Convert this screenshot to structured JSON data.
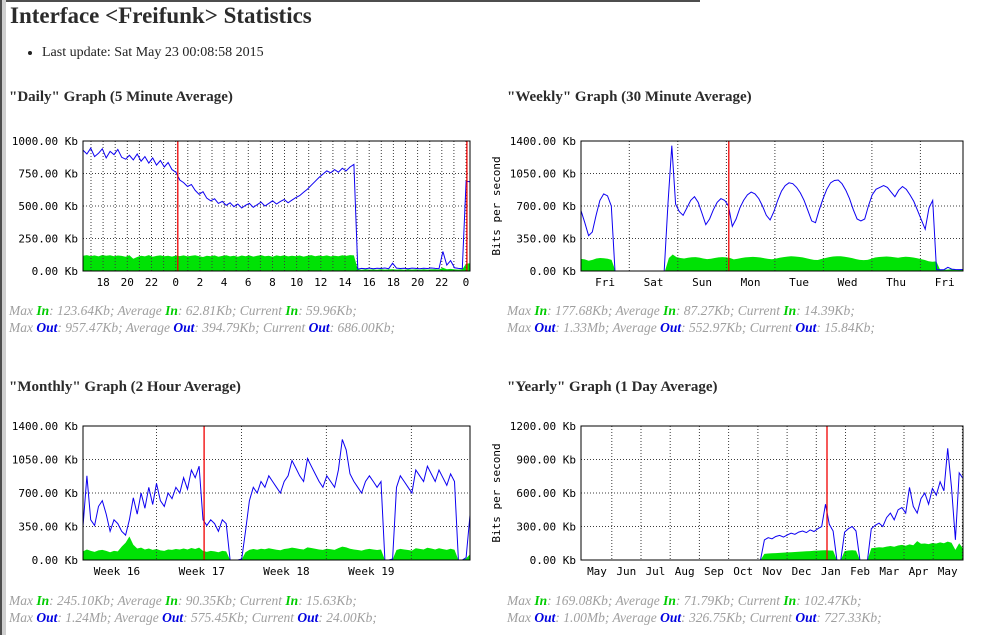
{
  "page": {
    "title": "Interface <Freifunk> Statistics",
    "last_update": "Last update: Sat May 23 00:08:58 2015"
  },
  "labels": {
    "max": "Max",
    "average": "Average",
    "current": "Current",
    "in": "In",
    "out": "Out"
  },
  "colors": {
    "in_fill": "#00e205",
    "in_text": "#00cc00",
    "out": "#0d00f2",
    "out_text": "#0000e0",
    "red_line": "#f00000",
    "grid": "#3c3c3c",
    "stats_text": "#9e9e9e",
    "title_text": "#2b2b2b"
  },
  "chart_data": [
    {
      "id": "daily",
      "title": "\"Daily\" Graph (5 Minute Average)",
      "type": "area+line",
      "ylabel": "Bits per second",
      "ylabel_visible": false,
      "ylim": [
        0,
        1000
      ],
      "y_tick_labels": [
        "1000.00 Kb",
        "750.00 Kb",
        "500.00 Kb",
        "250.00 Kb",
        "0.00 Kb"
      ],
      "x_tick_labels": [
        "18",
        "20",
        "22",
        "0",
        "2",
        "4",
        "6",
        "8",
        "10",
        "12",
        "14",
        "16",
        "18",
        "20",
        "22",
        "0"
      ],
      "x_tick_first": 0.052,
      "x_tick_step": 0.0625,
      "x_anchor": "middle",
      "grid_x_start": 0.0208,
      "grid_x_step": 0.03125,
      "red_lines": [
        0.245,
        0.992
      ],
      "series": [
        {
          "name": "In",
          "role": "in",
          "values": [
            118,
            122,
            115,
            120,
            112,
            123,
            117,
            121,
            114,
            119,
            116,
            110,
            121,
            95,
            108,
            118,
            112,
            122,
            109,
            116,
            120,
            113,
            118,
            111,
            119,
            115,
            120,
            112,
            117,
            121,
            114,
            108,
            118,
            113,
            120,
            110,
            116,
            121,
            112,
            117,
            109,
            119,
            114,
            120,
            111,
            117,
            122,
            113,
            118,
            110,
            120,
            115,
            121,
            112,
            118,
            114,
            119,
            111,
            117,
            122,
            113,
            119,
            115,
            120,
            112,
            118,
            114,
            121,
            116,
            122,
            120,
            12,
            10,
            13,
            11,
            12,
            10,
            13,
            11,
            12,
            14,
            11,
            12,
            10,
            13,
            11,
            12,
            10,
            13,
            11,
            12,
            14,
            11,
            25,
            13,
            16,
            12,
            11,
            13,
            55,
            60
          ]
        },
        {
          "name": "Out",
          "role": "out",
          "values": [
            930,
            900,
            945,
            880,
            905,
            940,
            870,
            920,
            895,
            935,
            875,
            860,
            890,
            855,
            900,
            845,
            880,
            830,
            870,
            815,
            850,
            800,
            835,
            780,
            760,
            700,
            680,
            650,
            665,
            620,
            590,
            610,
            560,
            540,
            555,
            520,
            535,
            505,
            525,
            495,
            515,
            485,
            505,
            520,
            490,
            510,
            530,
            500,
            520,
            540,
            515,
            535,
            550,
            525,
            545,
            565,
            580,
            605,
            630,
            660,
            690,
            720,
            745,
            770,
            755,
            780,
            760,
            790,
            770,
            800,
            820,
            15,
            20,
            18,
            22,
            17,
            21,
            19,
            23,
            18,
            60,
            22,
            19,
            21,
            18,
            22,
            20,
            17,
            21,
            19,
            23,
            20,
            18,
            150,
            45,
            80,
            25,
            20,
            18,
            690,
            686
          ]
        }
      ],
      "stats": {
        "in": {
          "max": "123.64Kb",
          "average": "62.81Kb",
          "current": "59.96Kb"
        },
        "out": {
          "max": "957.47Kb",
          "average": "394.79Kb",
          "current": "686.00Kb"
        }
      }
    },
    {
      "id": "weekly",
      "title": "\"Weekly\" Graph (30 Minute Average)",
      "type": "area+line",
      "ylabel": "Bits per second",
      "ylabel_visible": true,
      "ylim": [
        0,
        1400
      ],
      "y_tick_labels": [
        "1400.00 Kb",
        "1050.00 Kb",
        "700.00 Kb",
        "350.00 Kb",
        "0.00 Kb"
      ],
      "x_tick_labels": [
        "Fri",
        "Sat",
        "Sun",
        "Mon",
        "Tue",
        "Wed",
        "Thu",
        "Fri"
      ],
      "x_tick_first": 0.063,
      "x_tick_step": 0.127,
      "x_anchor": "middle",
      "grid_x_start": 0.1265,
      "grid_x_step": 0.127,
      "red_lines": [
        0.387
      ],
      "series": [
        {
          "name": "In",
          "role": "in",
          "values": [
            130,
            125,
            110,
            120,
            135,
            140,
            138,
            132,
            120,
            0,
            0,
            0,
            0,
            0,
            0,
            0,
            0,
            0,
            0,
            0,
            0,
            0,
            0,
            140,
            178,
            150,
            140,
            135,
            142,
            148,
            150,
            144,
            135,
            128,
            132,
            140,
            146,
            150,
            147,
            140,
            125,
            132,
            140,
            146,
            150,
            152,
            150,
            145,
            138,
            130,
            126,
            134,
            142,
            150,
            155,
            158,
            156,
            152,
            146,
            138,
            128,
            120,
            118,
            130,
            140,
            150,
            156,
            158,
            158,
            154,
            147,
            139,
            128,
            119,
            117,
            119,
            133,
            145,
            151,
            153,
            156,
            153,
            148,
            143,
            150,
            154,
            151,
            145,
            138,
            128,
            118,
            105,
            100,
            103,
            14,
            14,
            15,
            20,
            15,
            14,
            14
          ]
        },
        {
          "name": "Out",
          "role": "out",
          "values": [
            650,
            520,
            380,
            420,
            600,
            760,
            830,
            810,
            700,
            0,
            0,
            0,
            0,
            0,
            0,
            0,
            0,
            0,
            0,
            0,
            0,
            0,
            0,
            730,
            1350,
            720,
            640,
            600,
            680,
            760,
            800,
            740,
            620,
            500,
            560,
            660,
            740,
            780,
            760,
            700,
            480,
            560,
            680,
            760,
            820,
            850,
            830,
            780,
            700,
            600,
            550,
            640,
            760,
            860,
            920,
            950,
            940,
            900,
            840,
            760,
            650,
            540,
            520,
            660,
            780,
            880,
            950,
            975,
            980,
            940,
            870,
            780,
            660,
            560,
            540,
            560,
            700,
            820,
            880,
            900,
            920,
            900,
            850,
            800,
            870,
            910,
            880,
            820,
            750,
            650,
            550,
            450,
            680,
            760,
            15,
            14,
            15,
            40,
            20,
            16,
            15,
            16
          ]
        }
      ],
      "stats": {
        "in": {
          "max": "177.68Kb",
          "average": "87.27Kb",
          "current": "14.39Kb"
        },
        "out": {
          "max": "1.33Mb",
          "average": "552.97Kb",
          "current": "15.84Kb"
        }
      }
    },
    {
      "id": "monthly",
      "title": "\"Monthly\" Graph (2 Hour Average)",
      "type": "area+line",
      "ylabel": "Bits per second",
      "ylabel_visible": false,
      "ylim": [
        0,
        1400
      ],
      "y_tick_labels": [
        "1400.00 Kb",
        "1050.00 Kb",
        "700.00 Kb",
        "350.00 Kb",
        "0.00 Kb"
      ],
      "x_tick_labels": [
        "Week 16",
        "Week 17",
        "Week 18",
        "Week 19"
      ],
      "x_tick_first": 0.028,
      "x_tick_step": 0.219,
      "x_anchor": "start",
      "grid_x_start": 0.19,
      "grid_x_step": 0.2195,
      "red_lines": [
        0.313
      ],
      "series": [
        {
          "name": "In",
          "role": "in",
          "values": [
            90,
            110,
            95,
            85,
            100,
            105,
            95,
            80,
            95,
            90,
            140,
            180,
            245,
            160,
            120,
            130,
            110,
            120,
            105,
            115,
            100,
            95,
            110,
            105,
            115,
            110,
            120,
            110,
            125,
            115,
            130,
            95,
            85,
            95,
            90,
            80,
            95,
            90,
            0,
            0,
            0,
            5,
            80,
            105,
            115,
            108,
            118,
            112,
            122,
            115,
            108,
            102,
            115,
            120,
            130,
            122,
            115,
            110,
            132,
            125,
            118,
            110,
            105,
            118,
            112,
            106,
            124,
            140,
            132,
            118,
            110,
            104,
            98,
            110,
            116,
            110,
            104,
            110,
            0,
            0,
            5,
            104,
            116,
            110,
            104,
            98,
            122,
            116,
            110,
            128,
            120,
            110,
            122,
            114,
            106,
            118,
            108,
            0,
            0,
            16,
            60
          ]
        },
        {
          "name": "Out",
          "role": "out",
          "values": [
            350,
            880,
            420,
            360,
            560,
            620,
            480,
            300,
            420,
            380,
            300,
            260,
            420,
            650,
            480,
            700,
            540,
            760,
            580,
            800,
            620,
            560,
            700,
            640,
            760,
            700,
            860,
            740,
            940,
            860,
            980,
            420,
            360,
            420,
            380,
            300,
            420,
            380,
            0,
            0,
            0,
            10,
            300,
            620,
            760,
            700,
            820,
            760,
            880,
            820,
            760,
            700,
            820,
            880,
            1040,
            960,
            880,
            820,
            1060,
            980,
            900,
            820,
            760,
            880,
            820,
            760,
            940,
            1260,
            1150,
            900,
            820,
            760,
            700,
            820,
            880,
            820,
            760,
            820,
            0,
            0,
            10,
            760,
            880,
            820,
            760,
            700,
            940,
            880,
            820,
            980,
            900,
            820,
            940,
            860,
            780,
            900,
            820,
            0,
            0,
            24,
            470
          ]
        }
      ],
      "stats": {
        "in": {
          "max": "245.10Kb",
          "average": "90.35Kb",
          "current": "15.63Kb"
        },
        "out": {
          "max": "1.24Mb",
          "average": "575.45Kb",
          "current": "24.00Kb"
        }
      }
    },
    {
      "id": "yearly",
      "title": "\"Yearly\" Graph (1 Day Average)",
      "type": "area+line",
      "ylabel": "Bits per second",
      "ylabel_visible": true,
      "ylim": [
        0,
        1200
      ],
      "y_tick_labels": [
        "1200.00 Kb",
        "900.00 Kb",
        "600.00 Kb",
        "300.00 Kb",
        "0.00 Kb"
      ],
      "x_tick_labels": [
        "May",
        "Jun",
        "Jul",
        "Aug",
        "Sep",
        "Oct",
        "Nov",
        "Dec",
        "Jan",
        "Feb",
        "Mar",
        "Apr",
        "May"
      ],
      "x_tick_first": 0.042,
      "x_tick_step": 0.0765,
      "x_anchor": "middle",
      "grid_x_start": 0.0805,
      "grid_x_step": 0.0765,
      "red_lines": [
        0.644
      ],
      "series": [
        {
          "name": "In",
          "role": "in",
          "values": [
            0,
            0,
            0,
            0,
            0,
            0,
            0,
            0,
            0,
            0,
            0,
            0,
            0,
            0,
            0,
            0,
            0,
            0,
            0,
            0,
            0,
            0,
            0,
            0,
            0,
            0,
            0,
            0,
            0,
            0,
            0,
            0,
            0,
            0,
            0,
            0,
            0,
            0,
            0,
            0,
            0,
            0,
            0,
            0,
            0,
            0,
            0,
            0,
            55,
            58,
            60,
            62,
            64,
            66,
            68,
            70,
            72,
            74,
            76,
            78,
            80,
            82,
            84,
            86,
            88,
            85,
            84,
            0,
            0,
            80,
            85,
            88,
            84,
            0,
            0,
            0,
            105,
            110,
            115,
            112,
            120,
            125,
            118,
            130,
            135,
            128,
            140,
            132,
            169,
            145,
            148,
            142,
            152,
            148,
            158,
            150,
            165,
            155,
            90,
            150,
            102
          ]
        },
        {
          "name": "Out",
          "role": "out",
          "values": [
            0,
            0,
            0,
            0,
            0,
            0,
            0,
            0,
            0,
            0,
            0,
            0,
            0,
            0,
            0,
            0,
            0,
            0,
            0,
            0,
            0,
            0,
            0,
            0,
            0,
            0,
            0,
            0,
            0,
            0,
            0,
            0,
            0,
            0,
            0,
            0,
            0,
            0,
            0,
            0,
            0,
            0,
            0,
            0,
            0,
            0,
            0,
            0,
            180,
            200,
            190,
            210,
            220,
            205,
            225,
            240,
            230,
            250,
            260,
            245,
            270,
            255,
            280,
            300,
            500,
            320,
            260,
            0,
            0,
            250,
            280,
            300,
            260,
            0,
            0,
            0,
            280,
            310,
            330,
            300,
            380,
            420,
            360,
            450,
            470,
            420,
            650,
            480,
            420,
            550,
            600,
            500,
            640,
            580,
            700,
            620,
            1000,
            650,
            180,
            780,
            730
          ]
        }
      ],
      "stats": {
        "in": {
          "max": "169.08Kb",
          "average": "71.79Kb",
          "current": "102.47Kb"
        },
        "out": {
          "max": "1.00Mb",
          "average": "326.75Kb",
          "current": "727.33Kb"
        }
      }
    }
  ]
}
